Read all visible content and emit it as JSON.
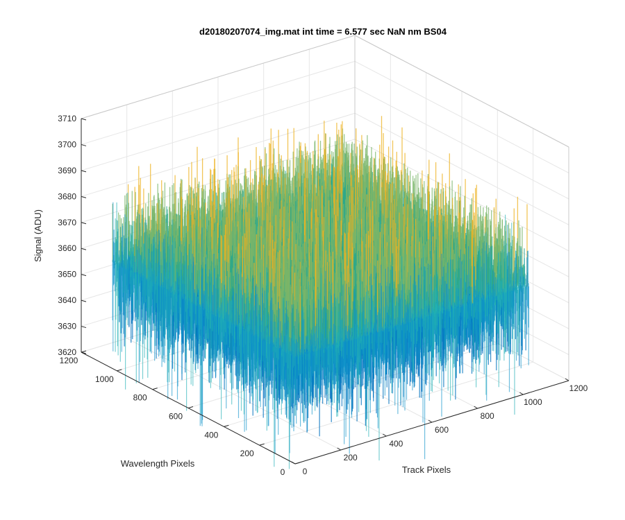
{
  "chart_data": {
    "type": "surface",
    "title": "d20180207074_img.mat int time = 6.577 sec  NaN nm BS04",
    "xlabel": "Track Pixels",
    "ylabel": "Wavelength Pixels",
    "zlabel": "Signal (ADU)",
    "xlim": [
      0,
      1200
    ],
    "ylim": [
      0,
      1200
    ],
    "zlim": [
      3620,
      3710
    ],
    "x_ticks": [
      "0",
      "200",
      "400",
      "600",
      "800",
      "1000",
      "1200"
    ],
    "y_ticks": [
      "0",
      "200",
      "400",
      "600",
      "800",
      "1000",
      "1200"
    ],
    "z_ticks": [
      "3620",
      "3630",
      "3640",
      "3650",
      "3660",
      "3670",
      "3680",
      "3690",
      "3700",
      "3710"
    ],
    "data_extent": {
      "x": [
        0,
        1024
      ],
      "y": [
        0,
        1024
      ]
    },
    "signal_mean": 3661,
    "signal_noise_range": [
      3630,
      3700
    ],
    "grid": true,
    "view": "3d",
    "colormap": "parula",
    "colors": {
      "low": "#0072bd",
      "mid": "#20b2aa",
      "high": "#edb120"
    }
  }
}
